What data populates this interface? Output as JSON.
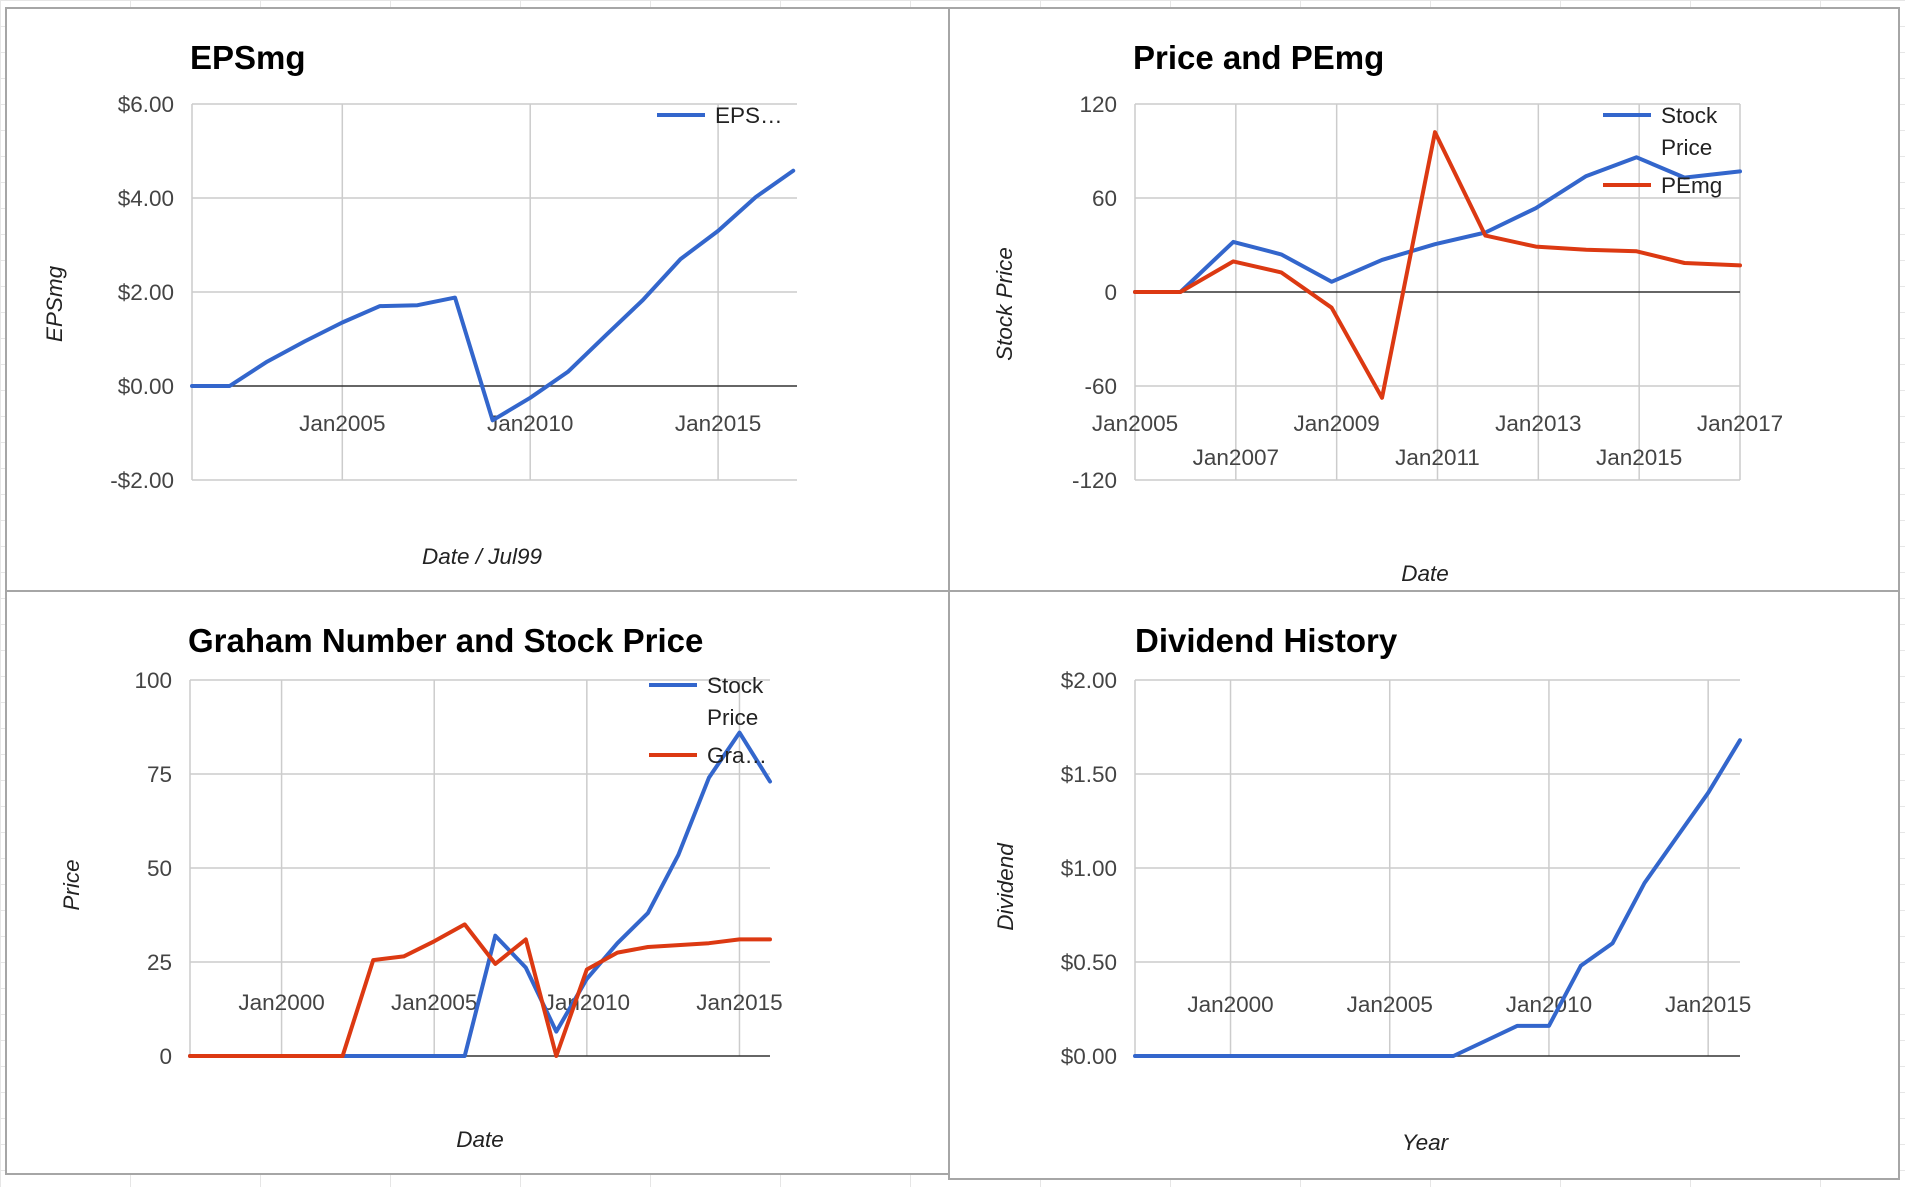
{
  "colors": {
    "blue": "#3366cc",
    "red": "#dc3912"
  },
  "chart_data": [
    {
      "id": "eps",
      "type": "line",
      "title": "EPSmg",
      "xlabel": "Date / Jul99",
      "ylabel": "EPSmg",
      "xlim": [
        2001.0,
        2017.1
      ],
      "ylim": [
        -2,
        6
      ],
      "x_ticks": [
        {
          "v": 2005,
          "label": "Jan2005"
        },
        {
          "v": 2010,
          "label": "Jan2010"
        },
        {
          "v": 2015,
          "label": "Jan2015"
        }
      ],
      "y_ticks": [
        {
          "v": 6,
          "label": "$6.00"
        },
        {
          "v": 4,
          "label": "$4.00"
        },
        {
          "v": 2,
          "label": "$2.00"
        },
        {
          "v": 0,
          "label": "$0.00"
        },
        {
          "v": -2,
          "label": "-$2.00"
        }
      ],
      "x_grid": [
        2005,
        2010,
        2015
      ],
      "series": [
        {
          "name": "EPS…",
          "color": "#3366cc",
          "x": [
            2001.0,
            2002.0,
            2003.0,
            2004.0,
            2005.0,
            2006.0,
            2007.0,
            2008.0,
            2009.0,
            2010.0,
            2011.0,
            2012.0,
            2013.0,
            2014.0,
            2015.0,
            2016.0,
            2017.0
          ],
          "y": [
            0.0,
            0.0,
            0.52,
            0.95,
            1.35,
            1.7,
            1.72,
            1.88,
            -0.73,
            -0.25,
            0.3,
            1.07,
            1.83,
            2.7,
            3.3,
            4.02,
            4.58
          ]
        }
      ]
    },
    {
      "id": "price_pe",
      "type": "line",
      "title": "Price and PEmg",
      "xlabel": "Date",
      "ylabel": "Stock Price",
      "xlim": [
        2005,
        2017
      ],
      "ylim": [
        -120,
        120
      ],
      "x_ticks": [
        {
          "v": 2005,
          "label": "Jan2005",
          "row": 0
        },
        {
          "v": 2007,
          "label": "Jan2007",
          "row": 1
        },
        {
          "v": 2009,
          "label": "Jan2009",
          "row": 0
        },
        {
          "v": 2011,
          "label": "Jan2011",
          "row": 1
        },
        {
          "v": 2013,
          "label": "Jan2013",
          "row": 0
        },
        {
          "v": 2015,
          "label": "Jan2015",
          "row": 1
        },
        {
          "v": 2017,
          "label": "Jan2017",
          "row": 0
        }
      ],
      "y_ticks": [
        {
          "v": 120,
          "label": "120"
        },
        {
          "v": 60,
          "label": "60"
        },
        {
          "v": 0,
          "label": "0"
        },
        {
          "v": -60,
          "label": "-60"
        },
        {
          "v": -120,
          "label": "-120"
        }
      ],
      "x_grid": [
        2007,
        2009,
        2011,
        2013,
        2015,
        2017
      ],
      "series": [
        {
          "name": "Stock Price",
          "label_lines": [
            "Stock",
            "Price"
          ],
          "color": "#3366cc",
          "x": [
            2005.0,
            2005.9,
            2006.95,
            2007.9,
            2008.9,
            2009.9,
            2010.95,
            2011.95,
            2012.95,
            2013.95,
            2014.95,
            2015.9,
            2017.0
          ],
          "y": [
            0,
            0,
            32,
            24,
            6.5,
            20.5,
            30.5,
            38,
            53.5,
            74,
            86,
            73,
            77
          ]
        },
        {
          "name": "PEmg",
          "label_lines": [
            "PEmg"
          ],
          "color": "#dc3912",
          "x": [
            2005.0,
            2005.9,
            2006.95,
            2007.9,
            2008.9,
            2009.9,
            2010.95,
            2011.95,
            2012.95,
            2013.95,
            2014.95,
            2015.9,
            2017.0
          ],
          "y": [
            0,
            0,
            19.5,
            12.5,
            -10,
            -67.5,
            102,
            36,
            29,
            27,
            26,
            18.5,
            17
          ]
        }
      ]
    },
    {
      "id": "graham",
      "type": "line",
      "title": "Graham Number and Stock Price",
      "xlabel": "Date",
      "ylabel": "Price",
      "xlim": [
        1997.0,
        2016.0
      ],
      "ylim": [
        0,
        100
      ],
      "x_ticks": [
        {
          "v": 2000,
          "label": "Jan2000"
        },
        {
          "v": 2005,
          "label": "Jan2005"
        },
        {
          "v": 2010,
          "label": "Jan2010"
        },
        {
          "v": 2015,
          "label": "Jan2015"
        }
      ],
      "y_ticks": [
        {
          "v": 100,
          "label": "100"
        },
        {
          "v": 75,
          "label": "75"
        },
        {
          "v": 50,
          "label": "50"
        },
        {
          "v": 25,
          "label": "25"
        },
        {
          "v": 0,
          "label": "0"
        }
      ],
      "x_grid": [
        2000,
        2005,
        2010,
        2015
      ],
      "series": [
        {
          "name": "Stock Price",
          "label_lines": [
            "Stock",
            "Price"
          ],
          "color": "#3366cc",
          "x": [
            1997.0,
            2006.0,
            2007.0,
            2008.0,
            2009.0,
            2010.0,
            2011.0,
            2012.0,
            2013.0,
            2014.0,
            2015.0,
            2016.0
          ],
          "y": [
            0,
            0,
            32,
            23.5,
            6.5,
            20.5,
            30,
            38,
            53.5,
            74,
            86,
            73
          ]
        },
        {
          "name": "Gra…",
          "label_lines": [
            "Gra…"
          ],
          "color": "#dc3912",
          "x": [
            1997.0,
            2002.0,
            2003.0,
            2004.0,
            2005.0,
            2006.0,
            2007.0,
            2008.0,
            2009.0,
            2010.0,
            2011.0,
            2012.0,
            2013.0,
            2014.0,
            2015.0,
            2016.0
          ],
          "y": [
            0,
            0,
            25.5,
            26.5,
            30.5,
            35,
            24.5,
            31,
            0,
            23,
            27.5,
            29,
            29.5,
            30,
            31,
            31
          ]
        }
      ]
    },
    {
      "id": "dividend",
      "type": "line",
      "title": "Dividend History",
      "xlabel": "Year",
      "ylabel": "Dividend",
      "xlim": [
        1997.0,
        2016.0
      ],
      "ylim": [
        0,
        2
      ],
      "x_ticks": [
        {
          "v": 2000,
          "label": "Jan2000"
        },
        {
          "v": 2005,
          "label": "Jan2005"
        },
        {
          "v": 2010,
          "label": "Jan2010"
        },
        {
          "v": 2015,
          "label": "Jan2015"
        }
      ],
      "y_ticks": [
        {
          "v": 2,
          "label": "$2.00"
        },
        {
          "v": 1.5,
          "label": "$1.50"
        },
        {
          "v": 1,
          "label": "$1.00"
        },
        {
          "v": 0.5,
          "label": "$0.50"
        },
        {
          "v": 0,
          "label": "$0.00"
        }
      ],
      "x_grid": [
        2000,
        2005,
        2010,
        2015
      ],
      "series": [
        {
          "name": "Dividend",
          "color": "#3366cc",
          "x": [
            1997.0,
            2007.0,
            2008.0,
            2009.0,
            2010.0,
            2011.0,
            2012.0,
            2013.0,
            2014.0,
            2015.0,
            2016.0
          ],
          "y": [
            0,
            0,
            0.08,
            0.16,
            0.16,
            0.48,
            0.6,
            0.92,
            1.16,
            1.4,
            1.68
          ]
        }
      ]
    }
  ]
}
